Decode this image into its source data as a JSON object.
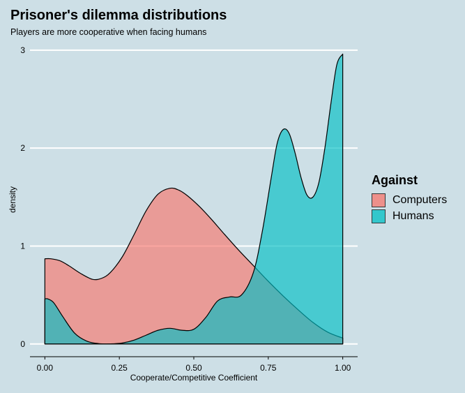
{
  "chart_data": {
    "type": "area",
    "title": "Prisoner's dilemma distributions",
    "subtitle": "Players are more cooperative when facing humans",
    "xlabel": "Cooperate/Competitive Coefficient",
    "ylabel": "density",
    "xlim": [
      -0.05,
      1.05
    ],
    "ylim": [
      -0.13,
      3.07
    ],
    "x_ticks": [
      0,
      0.25,
      0.5,
      0.75,
      1
    ],
    "x_tick_labels": [
      "0.00",
      "0.25",
      "0.50",
      "0.75",
      "1.00"
    ],
    "y_ticks": [
      0,
      1,
      2,
      3
    ],
    "y_tick_labels": [
      "0",
      "1",
      "2",
      "3"
    ],
    "grid": "horizontal",
    "legend": {
      "title": "Against",
      "position": "right",
      "entries": [
        "Computers",
        "Humans"
      ]
    },
    "series": [
      {
        "name": "Computers",
        "color": "#f8766d",
        "x": [
          0,
          0.02,
          0.05,
          0.08,
          0.12,
          0.16,
          0.19,
          0.22,
          0.26,
          0.3,
          0.34,
          0.38,
          0.42,
          0.45,
          0.48,
          0.52,
          0.56,
          0.6,
          0.65,
          0.7,
          0.75,
          0.8,
          0.85,
          0.9,
          0.95,
          1.0
        ],
        "y": [
          0.87,
          0.87,
          0.85,
          0.8,
          0.72,
          0.66,
          0.67,
          0.73,
          0.89,
          1.12,
          1.36,
          1.53,
          1.59,
          1.57,
          1.51,
          1.4,
          1.27,
          1.13,
          0.96,
          0.8,
          0.64,
          0.49,
          0.35,
          0.22,
          0.12,
          0.06
        ]
      },
      {
        "name": "Humans",
        "color": "#00bfc4",
        "x": [
          0,
          0.01,
          0.03,
          0.06,
          0.1,
          0.14,
          0.18,
          0.22,
          0.26,
          0.3,
          0.34,
          0.38,
          0.42,
          0.46,
          0.5,
          0.54,
          0.58,
          0.62,
          0.66,
          0.7,
          0.73,
          0.76,
          0.78,
          0.8,
          0.82,
          0.84,
          0.86,
          0.88,
          0.9,
          0.92,
          0.94,
          0.96,
          0.98,
          1.0
        ],
        "y": [
          0.46,
          0.46,
          0.42,
          0.28,
          0.11,
          0.03,
          0.004,
          0.001,
          0.01,
          0.04,
          0.09,
          0.14,
          0.16,
          0.14,
          0.15,
          0.27,
          0.44,
          0.48,
          0.5,
          0.73,
          1.15,
          1.7,
          2.05,
          2.19,
          2.15,
          1.95,
          1.7,
          1.52,
          1.5,
          1.65,
          2.0,
          2.45,
          2.85,
          2.96
        ]
      }
    ]
  }
}
